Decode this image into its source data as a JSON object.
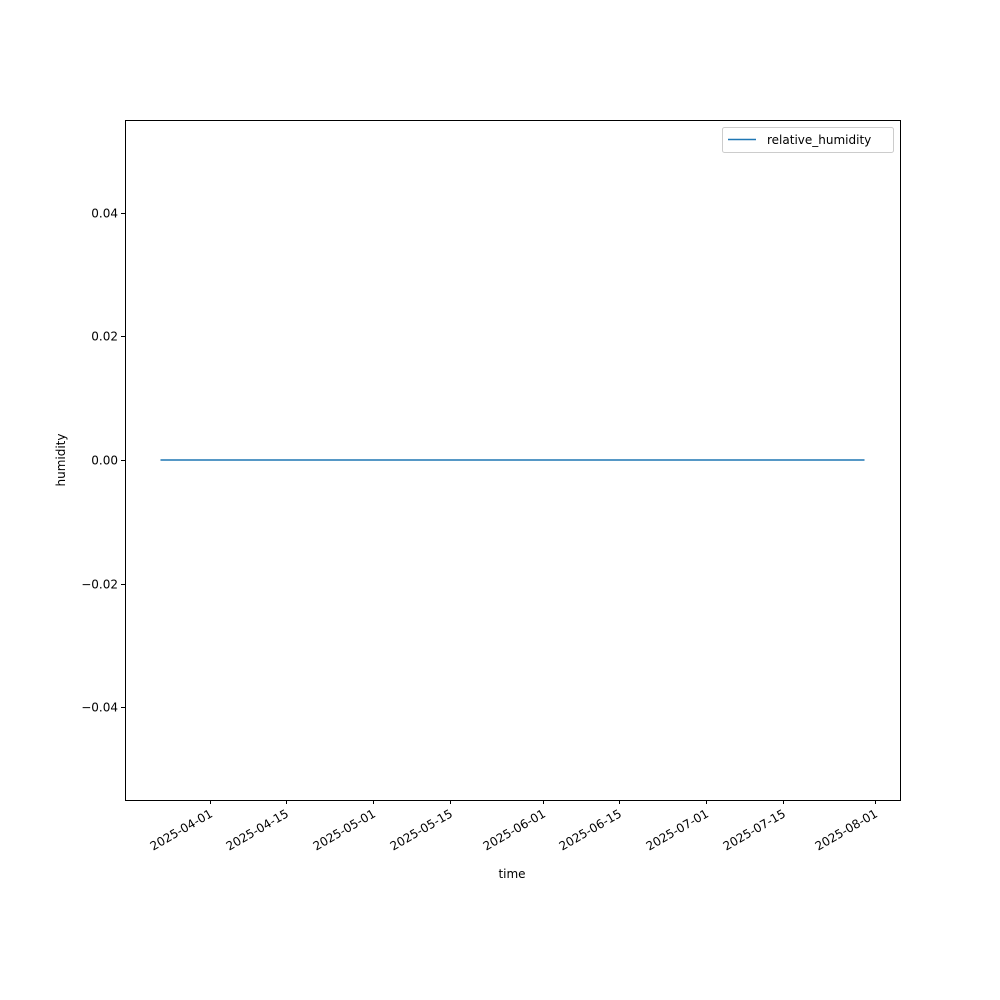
{
  "chart_data": {
    "type": "line",
    "title": "",
    "xlabel": "time",
    "ylabel": "humidity",
    "xlim": [
      "2025-03-16T12:00",
      "2025-08-05T12:00"
    ],
    "ylim": [
      -0.055,
      0.055
    ],
    "x_ticks": [
      "2025-04-01",
      "2025-04-15",
      "2025-05-01",
      "2025-05-15",
      "2025-06-01",
      "2025-06-15",
      "2025-07-01",
      "2025-07-15",
      "2025-08-01"
    ],
    "y_ticks": [
      {
        "value": -0.04,
        "label": "−0.04"
      },
      {
        "value": -0.02,
        "label": "−0.02"
      },
      {
        "value": 0.0,
        "label": "0.00"
      },
      {
        "value": 0.02,
        "label": "0.02"
      },
      {
        "value": 0.04,
        "label": "0.04"
      }
    ],
    "grid": false,
    "legend": "top-right",
    "series": [
      {
        "name": "relative_humidity",
        "color": "#1f77b4",
        "x": [
          "2025-03-23",
          "2025-07-30"
        ],
        "y": [
          0.0,
          0.0
        ]
      }
    ]
  }
}
